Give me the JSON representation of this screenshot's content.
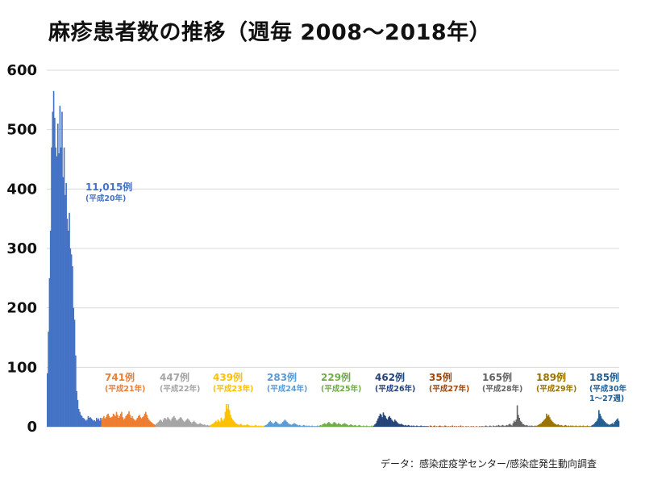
{
  "title": "麻疹患者数の推移（週毎 2008～2018年）",
  "source": "データ：感染症疫学センター/感染症発生動向調査",
  "chart_data": {
    "type": "bar",
    "title": "麻疹患者数の推移（週毎 2008～2018年）",
    "xlabel": "",
    "ylabel": "",
    "ylim": [
      0,
      600
    ],
    "yticks": [
      0,
      100,
      200,
      300,
      400,
      500,
      600
    ],
    "grid": true,
    "series": [
      {
        "total_label": "11,015例",
        "year_label": "(平成20年)",
        "color": "#4472C4",
        "values": [
          90,
          160,
          250,
          330,
          470,
          530,
          565,
          520,
          470,
          455,
          510,
          460,
          540,
          470,
          530,
          420,
          470,
          390,
          410,
          350,
          330,
          360,
          300,
          290,
          270,
          200,
          180,
          120,
          60,
          45,
          30,
          25,
          20,
          18,
          15,
          14,
          12,
          10,
          12,
          18,
          15,
          16,
          14,
          12,
          10,
          11,
          9,
          15,
          12,
          14,
          10,
          15
        ]
      },
      {
        "total_label": "741例",
        "year_label": "(平成21年)",
        "color": "#ED7D31",
        "values": [
          12,
          15,
          18,
          14,
          16,
          20,
          22,
          18,
          15,
          16,
          17,
          22,
          20,
          18,
          25,
          20,
          15,
          18,
          22,
          25,
          16,
          12,
          14,
          18,
          20,
          22,
          26,
          20,
          15,
          18,
          14,
          12,
          10,
          12,
          15,
          18,
          20,
          16,
          14,
          16,
          18,
          22,
          25,
          20,
          15,
          12,
          10,
          8,
          7,
          5,
          4,
          3
        ]
      },
      {
        "total_label": "447例",
        "year_label": "(平成22年)",
        "color": "#A5A5A5",
        "values": [
          5,
          6,
          8,
          10,
          12,
          10,
          8,
          12,
          15,
          14,
          12,
          16,
          14,
          12,
          10,
          14,
          16,
          18,
          15,
          12,
          10,
          12,
          14,
          16,
          15,
          12,
          10,
          8,
          10,
          12,
          14,
          12,
          10,
          8,
          6,
          8,
          10,
          8,
          6,
          5,
          4,
          5,
          6,
          5,
          4,
          3,
          4,
          3,
          2,
          3,
          2,
          2
        ]
      },
      {
        "total_label": "439例",
        "year_label": "(平成23年)",
        "color": "#FFC000",
        "values": [
          3,
          4,
          5,
          6,
          8,
          10,
          8,
          12,
          10,
          8,
          15,
          12,
          10,
          14,
          25,
          38,
          30,
          38,
          28,
          20,
          15,
          12,
          10,
          8,
          6,
          5,
          4,
          3,
          4,
          5,
          3,
          2,
          3,
          2,
          3,
          4,
          3,
          2,
          2,
          1,
          2,
          1,
          2,
          3,
          2,
          1,
          2,
          1,
          2,
          1,
          1,
          2
        ]
      },
      {
        "total_label": "283例",
        "year_label": "(平成24年)",
        "color": "#5B9BD5",
        "values": [
          2,
          3,
          4,
          6,
          8,
          10,
          8,
          6,
          5,
          7,
          9,
          8,
          6,
          5,
          4,
          5,
          6,
          8,
          10,
          12,
          10,
          8,
          6,
          5,
          4,
          3,
          4,
          5,
          6,
          5,
          4,
          3,
          2,
          3,
          2,
          1,
          2,
          3,
          2,
          1,
          2,
          1,
          2,
          1,
          1,
          2,
          1,
          1,
          1,
          1,
          2,
          1
        ]
      },
      {
        "total_label": "229例",
        "year_label": "(平成25年)",
        "color": "#70AD47",
        "values": [
          2,
          3,
          2,
          4,
          5,
          6,
          4,
          5,
          7,
          8,
          6,
          5,
          4,
          6,
          8,
          7,
          5,
          4,
          6,
          5,
          4,
          3,
          4,
          5,
          6,
          5,
          4,
          3,
          2,
          3,
          4,
          3,
          2,
          2,
          3,
          2,
          1,
          2,
          3,
          2,
          1,
          1,
          2,
          1,
          1,
          2,
          1,
          1,
          1,
          1,
          2,
          1
        ]
      },
      {
        "total_label": "462例",
        "year_label": "(平成26年)",
        "color": "#264478",
        "values": [
          2,
          4,
          6,
          10,
          14,
          18,
          22,
          20,
          16,
          24,
          20,
          18,
          14,
          12,
          16,
          18,
          15,
          12,
          10,
          8,
          12,
          10,
          8,
          6,
          5,
          4,
          5,
          4,
          3,
          2,
          3,
          2,
          2,
          3,
          2,
          1,
          2,
          1,
          2,
          1,
          1,
          2,
          1,
          1,
          1,
          2,
          1,
          1,
          1,
          1,
          1,
          1
        ]
      },
      {
        "total_label": "35例",
        "year_label": "(平成27年)",
        "color": "#9E480E",
        "values": [
          1,
          0,
          2,
          1,
          0,
          1,
          2,
          0,
          1,
          0,
          1,
          2,
          1,
          0,
          1,
          0,
          2,
          1,
          0,
          1,
          0,
          1,
          0,
          2,
          0,
          1,
          0,
          1,
          0,
          1,
          0,
          2,
          0,
          1,
          0,
          0,
          1,
          0,
          1,
          0,
          0,
          1,
          0,
          1,
          0,
          0,
          1,
          0,
          0,
          1,
          0,
          1
        ]
      },
      {
        "total_label": "165例",
        "year_label": "(平成28年)",
        "color": "#636363",
        "values": [
          1,
          0,
          1,
          2,
          1,
          0,
          1,
          2,
          1,
          0,
          2,
          1,
          1,
          2,
          1,
          3,
          2,
          1,
          2,
          3,
          2,
          1,
          2,
          3,
          2,
          4,
          5,
          3,
          2,
          6,
          10,
          8,
          12,
          36,
          20,
          15,
          10,
          8,
          5,
          4,
          3,
          2,
          3,
          2,
          1,
          2,
          1,
          2,
          1,
          1,
          2,
          1
        ]
      },
      {
        "total_label": "189例",
        "year_label": "(平成29年)",
        "color": "#997300",
        "values": [
          2,
          3,
          4,
          5,
          6,
          8,
          10,
          12,
          14,
          22,
          18,
          20,
          16,
          12,
          10,
          8,
          6,
          5,
          4,
          3,
          4,
          3,
          2,
          3,
          2,
          1,
          2,
          3,
          2,
          1,
          2,
          1,
          2,
          1,
          2,
          1,
          1,
          2,
          1,
          1,
          1,
          2,
          1,
          1,
          2,
          1,
          1,
          1,
          2,
          1,
          1,
          1
        ]
      },
      {
        "total_label": "185例",
        "year_label": "(平成30年",
        "year_label2": "1～27週)",
        "color": "#255E91",
        "values": [
          2,
          3,
          4,
          6,
          8,
          10,
          14,
          28,
          22,
          18,
          14,
          12,
          10,
          8,
          6,
          5,
          4,
          3,
          4,
          5,
          6,
          4,
          8,
          10,
          12,
          14,
          10
        ]
      }
    ]
  }
}
